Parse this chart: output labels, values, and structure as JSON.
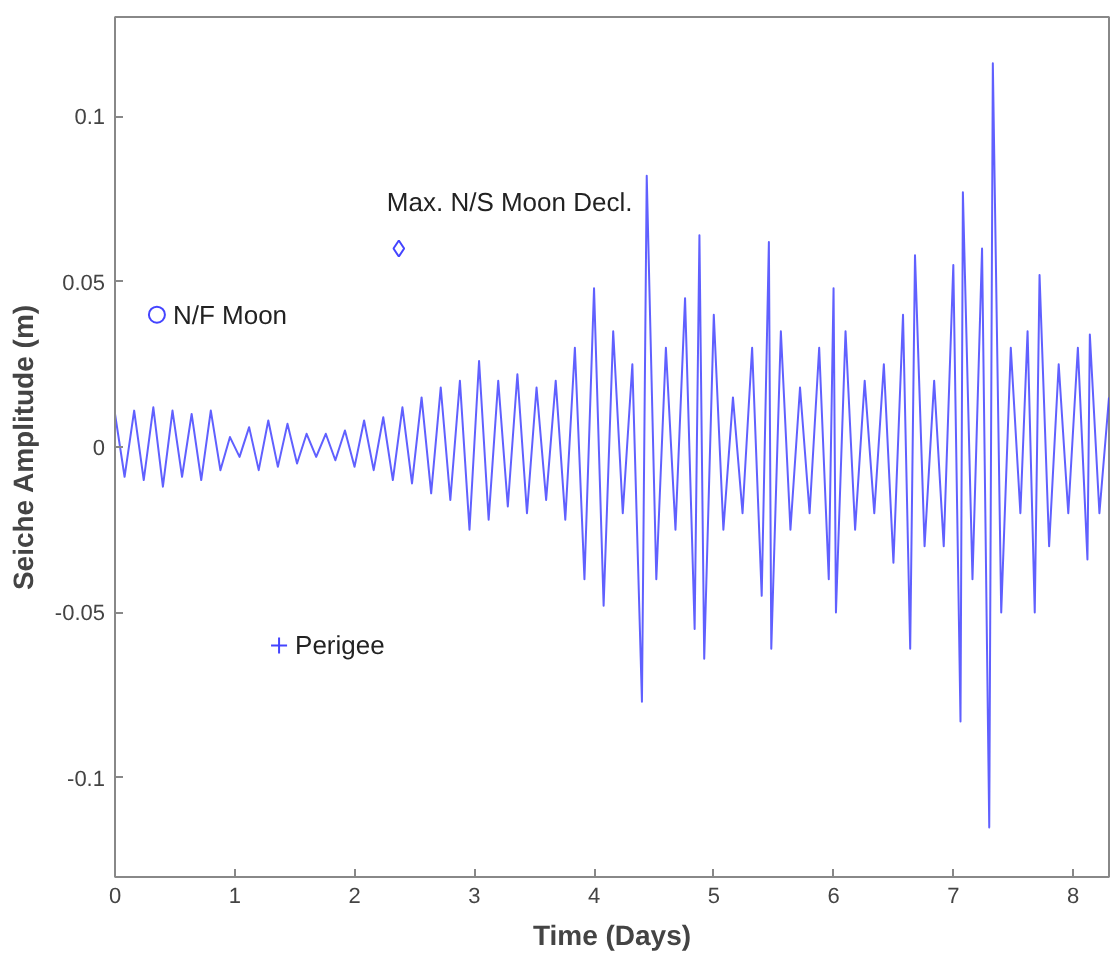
{
  "chart_data": {
    "type": "line",
    "xlabel": "Time (Days)",
    "ylabel": "Seiche Amplitude (m)",
    "xlim": [
      0,
      8.3
    ],
    "ylim": [
      -0.13,
      0.13
    ],
    "xticks": [
      0,
      1,
      2,
      3,
      4,
      5,
      6,
      7,
      8
    ],
    "yticks": [
      -0.1,
      -0.05,
      0,
      0.05,
      0.1
    ],
    "grid": false,
    "series": [
      {
        "color": "#4444ff",
        "x": [
          0,
          0.08,
          0.16,
          0.24,
          0.32,
          0.4,
          0.48,
          0.56,
          0.64,
          0.72,
          0.8,
          0.88,
          0.96,
          1.04,
          1.12,
          1.2,
          1.28,
          1.36,
          1.44,
          1.52,
          1.6,
          1.68,
          1.76,
          1.84,
          1.92,
          2.0,
          2.08,
          2.16,
          2.24,
          2.32,
          2.4,
          2.48,
          2.56,
          2.64,
          2.72,
          2.8,
          2.88,
          2.96,
          3.04,
          3.12,
          3.2,
          3.28,
          3.36,
          3.44,
          3.52,
          3.6,
          3.68,
          3.76,
          3.84,
          3.92,
          4.0,
          4.08,
          4.16,
          4.24,
          4.32,
          4.4,
          4.44,
          4.52,
          4.6,
          4.68,
          4.76,
          4.84,
          4.88,
          4.92,
          5.0,
          5.08,
          5.16,
          5.24,
          5.32,
          5.4,
          5.46,
          5.48,
          5.56,
          5.64,
          5.72,
          5.8,
          5.88,
          5.96,
          6.0,
          6.02,
          6.1,
          6.18,
          6.26,
          6.34,
          6.42,
          6.5,
          6.58,
          6.64,
          6.68,
          6.76,
          6.84,
          6.92,
          7.0,
          7.06,
          7.08,
          7.16,
          7.24,
          7.3,
          7.33,
          7.4,
          7.48,
          7.56,
          7.62,
          7.68,
          7.72,
          7.8,
          7.88,
          7.96,
          8.04,
          8.12,
          8.14,
          8.22,
          8.3
        ],
        "values": [
          0.01,
          -0.009,
          0.011,
          -0.01,
          0.012,
          -0.012,
          0.011,
          -0.009,
          0.01,
          -0.01,
          0.011,
          -0.007,
          0.003,
          -0.003,
          0.006,
          -0.007,
          0.008,
          -0.006,
          0.007,
          -0.005,
          0.004,
          -0.003,
          0.004,
          -0.004,
          0.005,
          -0.006,
          0.008,
          -0.007,
          0.009,
          -0.01,
          0.012,
          -0.011,
          0.015,
          -0.014,
          0.018,
          -0.016,
          0.02,
          -0.025,
          0.026,
          -0.022,
          0.02,
          -0.018,
          0.022,
          -0.02,
          0.018,
          -0.016,
          0.02,
          -0.022,
          0.03,
          -0.04,
          0.048,
          -0.048,
          0.035,
          -0.02,
          0.025,
          -0.077,
          0.082,
          -0.04,
          0.03,
          -0.025,
          0.045,
          -0.055,
          0.064,
          -0.064,
          0.04,
          -0.025,
          0.015,
          -0.02,
          0.03,
          -0.045,
          0.062,
          -0.061,
          0.035,
          -0.025,
          0.018,
          -0.02,
          0.03,
          -0.04,
          0.048,
          -0.05,
          0.035,
          -0.025,
          0.02,
          -0.02,
          0.025,
          -0.035,
          0.04,
          -0.061,
          0.058,
          -0.03,
          0.02,
          -0.03,
          0.055,
          -0.083,
          0.077,
          -0.04,
          0.06,
          -0.115,
          0.116,
          -0.05,
          0.03,
          -0.02,
          0.035,
          -0.05,
          0.052,
          -0.03,
          0.025,
          -0.02,
          0.03,
          -0.034,
          0.034,
          -0.02,
          0.015
        ]
      },
      {
        "type": "scatter",
        "name": "N/F Moon",
        "marker": "circle",
        "color": "#4444ff",
        "x": [
          0.35
        ],
        "values": [
          0.04
        ]
      },
      {
        "type": "scatter",
        "name": "Max. N/S Moon Decl.",
        "marker": "diamond",
        "color": "#4444ff",
        "x": [
          2.37
        ],
        "values": [
          0.06
        ]
      },
      {
        "type": "scatter",
        "name": "Perigee",
        "marker": "cross",
        "color": "#4444ff",
        "x": [
          1.37
        ],
        "values": [
          -0.06
        ]
      }
    ]
  }
}
